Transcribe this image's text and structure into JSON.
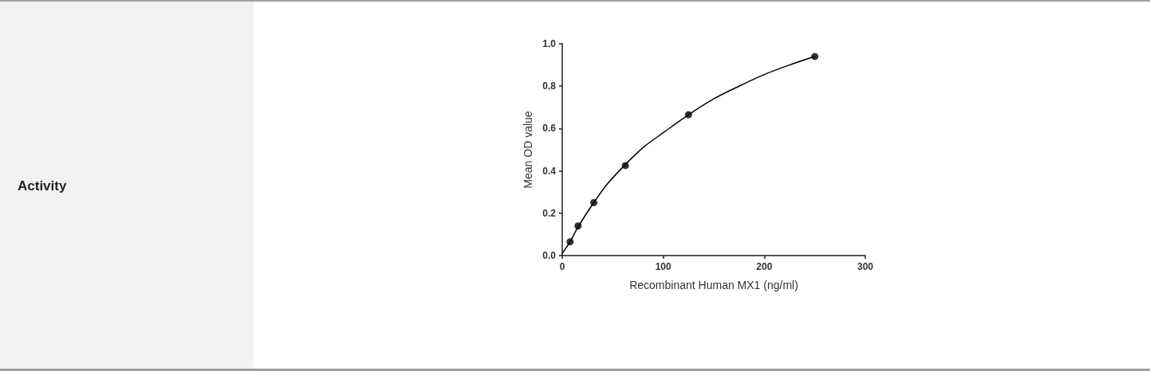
{
  "chart_data": {
    "type": "scatter",
    "xlabel": "Recombinant Human MX1 (ng/ml)",
    "ylabel": "Mean OD value",
    "annotations": [
      "Activity"
    ],
    "xlim": [
      0,
      300
    ],
    "xticks": [
      0,
      100,
      200,
      300
    ],
    "ylim": [
      0,
      1
    ],
    "yticks": [
      {
        "value": 0,
        "label": "0.0"
      },
      {
        "value": 0.2,
        "label": "0.2"
      },
      {
        "value": 0.4,
        "label": "0.4"
      },
      {
        "value": 0.6,
        "label": "0.6"
      },
      {
        "value": 0.8,
        "label": "0.8"
      },
      {
        "value": 1,
        "label": "1.0"
      }
    ],
    "grid": false,
    "series": [
      {
        "marker": "circle",
        "color": "#000000",
        "x": [
          7.8,
          15.6,
          31.25,
          62.5,
          125,
          250
        ],
        "values": [
          0.065,
          0.14,
          0.25,
          0.425,
          0.665,
          0.94
        ]
      },
      {
        "type": "line",
        "marker": "none",
        "line_style": "solid",
        "color": "#000000",
        "x": [
          0,
          7.8,
          15.6,
          31.25,
          45,
          62.5,
          80,
          100,
          125,
          150,
          175,
          200,
          225,
          250
        ],
        "values": [
          0.01,
          0.065,
          0.135,
          0.25,
          0.34,
          0.43,
          0.51,
          0.58,
          0.665,
          0.74,
          0.8,
          0.855,
          0.9,
          0.94
        ]
      }
    ]
  }
}
